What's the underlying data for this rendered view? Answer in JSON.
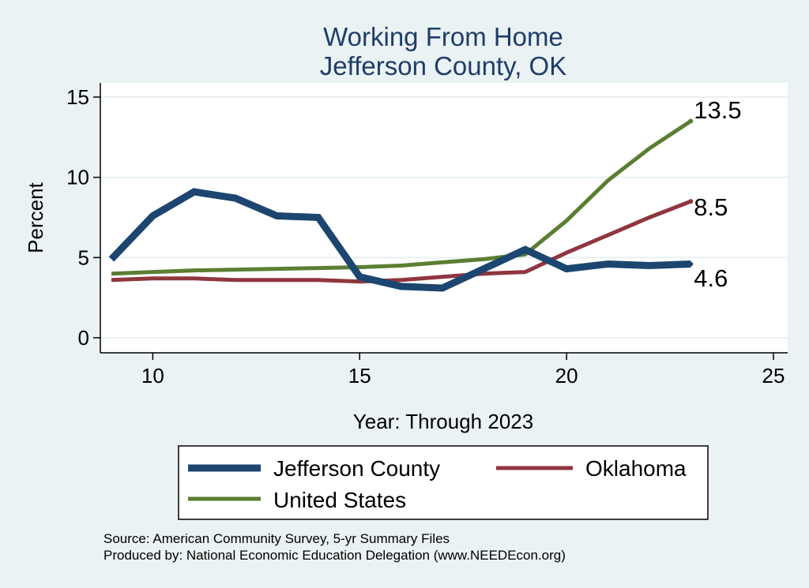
{
  "chart_data": {
    "type": "line",
    "title": [
      "Working From Home",
      "Jefferson County, OK"
    ],
    "xlabel": "Year: Through 2023",
    "ylabel": "Percent",
    "xlim": [
      9,
      25
    ],
    "ylim": [
      0,
      15
    ],
    "x_ticks": [
      10,
      15,
      20,
      25
    ],
    "y_ticks": [
      0,
      5,
      10,
      15
    ],
    "grid": true,
    "x": [
      9,
      10,
      11,
      12,
      13,
      14,
      15,
      16,
      17,
      18,
      19,
      20,
      21,
      22,
      23
    ],
    "series": [
      {
        "name": "Jefferson County",
        "color": "#1c4670",
        "values": [
          4.9,
          7.6,
          9.1,
          8.7,
          7.6,
          7.5,
          3.8,
          3.2,
          3.1,
          4.3,
          5.5,
          4.3,
          4.6,
          4.5,
          4.6
        ],
        "end_label": "4.6"
      },
      {
        "name": "Oklahoma",
        "color": "#8f363f",
        "values": [
          3.6,
          3.7,
          3.7,
          3.6,
          3.6,
          3.6,
          3.5,
          3.6,
          3.8,
          4.0,
          4.1,
          5.3,
          6.4,
          7.5,
          8.5
        ],
        "end_label": "8.5"
      },
      {
        "name": "United States",
        "color": "#5b7e32",
        "values": [
          4.0,
          4.1,
          4.2,
          4.25,
          4.3,
          4.35,
          4.4,
          4.5,
          4.7,
          4.9,
          5.2,
          7.3,
          9.8,
          11.8,
          13.5
        ],
        "end_label": "13.5"
      }
    ],
    "legend": [
      "Jefferson County",
      "Oklahoma",
      "United States"
    ],
    "legend_position": "bottom"
  },
  "footer": {
    "source": "Source: American Community Survey, 5-yr Summary Files",
    "produced_by": "Produced by: National Economic Education Delegation (www.NEEDEcon.org)"
  }
}
